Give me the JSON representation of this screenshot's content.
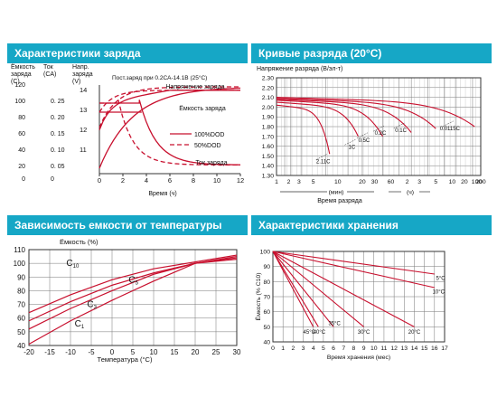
{
  "colors": {
    "header_bg": "#16a7c6",
    "curve": "#c8102e",
    "grid": "#777777",
    "text": "#111111"
  },
  "panels": {
    "charge": {
      "title": "Характеристики заряда",
      "note": "Пост.заряд при 0.2CA-14.1В (25°C)",
      "left_axes": {
        "capacity": {
          "label": [
            "Ёмкость",
            "заряда",
            "(C)"
          ],
          "ticks": [
            "120",
            "100",
            "80",
            "60",
            "40",
            "20",
            "0"
          ]
        },
        "current": {
          "label": [
            "Ток",
            "(CA)"
          ],
          "ticks": [
            "0. 25",
            "0. 20",
            "0. 15",
            "0. 10",
            "0. 05",
            "0"
          ]
        },
        "voltage": {
          "label": [
            "Напр.",
            "заряда",
            "(V)"
          ],
          "ticks": [
            "14",
            "13",
            "12",
            "11"
          ]
        }
      },
      "curve_labels": {
        "voltage": "Напряжение заряда",
        "capacity": "Ёмкость заряда",
        "current": "Ток заряда"
      },
      "legend": [
        "100%DOD",
        "50%DOD"
      ],
      "xlabel": "Время (ч)",
      "xticks": [
        "0",
        "2",
        "4",
        "6",
        "8",
        "10",
        "12"
      ]
    },
    "discharge": {
      "title": "Кривые разряда (20°C)",
      "ylabel": "Напряжение разряда (В/эл-т)",
      "yticks": [
        "2.30",
        "2.20",
        "2.10",
        "2.00",
        "1.90",
        "1.80",
        "1.70",
        "1.60",
        "1.50",
        "1.40",
        "1.30"
      ],
      "xticks": [
        "1",
        "2",
        "3",
        "5",
        "10",
        "20",
        "30",
        "60",
        "2",
        "3",
        "5",
        "10",
        "20",
        "100",
        "200"
      ],
      "unit_min": "(мин)",
      "unit_h": "(ч)",
      "xlabel": "Время разряда",
      "curve_labels": [
        "2.11C",
        "1C",
        "0.5C",
        "0.2C",
        "0.1C",
        "0.0115C"
      ]
    },
    "temperature": {
      "title": "Зависимость емкости от температуры",
      "ylabel": "Ёмкость (%)",
      "xlabel": "Температура (°C)",
      "yticks": [
        "40",
        "50",
        "60",
        "70",
        "80",
        "90",
        "100",
        "110"
      ],
      "xticks": [
        "-20",
        "-15",
        "-10",
        "-5",
        "0",
        "5",
        "10",
        "15",
        "20",
        "25",
        "30"
      ],
      "labels": {
        "c10": "C10",
        "c5": "C5",
        "c3": "C3",
        "c1": "C1"
      }
    },
    "storage": {
      "title": "Характеристики хранения",
      "ylabel": "Ёмкость (% C10)",
      "xlabel": "Время хранения (мес)",
      "yticks": [
        "100",
        "90",
        "80",
        "70",
        "60",
        "50",
        "40"
      ],
      "xticks": [
        "0",
        "1",
        "2",
        "3",
        "4",
        "5",
        "6",
        "7",
        "8",
        "9",
        "10",
        "11",
        "12",
        "13",
        "14",
        "15",
        "16",
        "17"
      ],
      "temp_labels": [
        "45°C",
        "40°C",
        "35°C",
        "30°C",
        "20°C",
        "10°C",
        "5°C"
      ]
    }
  },
  "chart_data": [
    {
      "type": "line",
      "title": "Характеристики заряда",
      "xlabel": "Время (ч)",
      "xlim": [
        0,
        12
      ],
      "series": [
        {
          "name": "Напряжение заряда",
          "x": [
            0,
            0.5,
            1,
            2,
            3,
            4,
            12
          ],
          "y": [
            12.1,
            12.9,
            13.2,
            13.5,
            13.8,
            14.1,
            14.1
          ]
        },
        {
          "name": "Ёмкость заряда",
          "x": [
            0,
            1,
            2,
            3,
            4,
            5,
            8,
            12
          ],
          "y": [
            0,
            20,
            40,
            60,
            78,
            90,
            100,
            100
          ]
        },
        {
          "name": "Ток заряда",
          "x": [
            0,
            3.5,
            4,
            5,
            6,
            8,
            12
          ],
          "y": [
            0.2,
            0.2,
            0.19,
            0.1,
            0.06,
            0.02,
            0.01
          ]
        }
      ]
    },
    {
      "type": "line",
      "title": "Кривые разряда (20°C)",
      "ylabel": "Напряжение разряда (В/эл-т)",
      "ylim": [
        1.3,
        2.3
      ],
      "xlabel": "Время разряда",
      "series": [
        {
          "name": "2.11C",
          "x_min": [
            1,
            10,
            20
          ],
          "y": [
            2.05,
            1.9,
            1.55
          ]
        },
        {
          "name": "1C",
          "x_min": [
            1,
            30,
            60
          ],
          "y": [
            2.06,
            1.9,
            1.75
          ]
        },
        {
          "name": "0.5C",
          "x_min": [
            1,
            60,
            120
          ],
          "y": [
            2.07,
            1.95,
            1.75
          ]
        },
        {
          "name": "0.2C",
          "x_min": [
            1,
            180,
            300
          ],
          "y": [
            2.08,
            1.98,
            1.75
          ]
        },
        {
          "name": "0.1C",
          "x_min": [
            1,
            420,
            600
          ],
          "y": [
            2.09,
            2.0,
            1.8
          ]
        },
        {
          "name": "0.0115C",
          "x_min": [
            1,
            3600,
            5400
          ],
          "y": [
            2.1,
            2.05,
            1.8
          ]
        }
      ]
    },
    {
      "type": "line",
      "title": "Зависимость емкости от температуры",
      "xlabel": "Температура (°C)",
      "ylabel": "Ёмкость (%)",
      "xlim": [
        -20,
        30
      ],
      "ylim": [
        40,
        110
      ],
      "series": [
        {
          "name": "C10",
          "x": [
            -20,
            -10,
            0,
            10,
            20,
            30
          ],
          "y": [
            64,
            77,
            88,
            96,
            101,
            106
          ]
        },
        {
          "name": "C5",
          "x": [
            -20,
            -10,
            0,
            10,
            20,
            30
          ],
          "y": [
            58,
            72,
            84,
            93,
            100,
            104
          ]
        },
        {
          "name": "C3",
          "x": [
            -20,
            -10,
            0,
            10,
            20,
            30
          ],
          "y": [
            52,
            67,
            80,
            92,
            100,
            103
          ]
        },
        {
          "name": "C1",
          "x": [
            -20,
            -10,
            0,
            10,
            20,
            30
          ],
          "y": [
            41,
            58,
            73,
            87,
            100,
            105
          ]
        }
      ]
    },
    {
      "type": "line",
      "title": "Характеристики хранения",
      "xlabel": "Время хранения (мес)",
      "ylabel": "Ёмкость (% C10)",
      "xlim": [
        0,
        17
      ],
      "ylim": [
        40,
        100
      ],
      "series": [
        {
          "name": "45°C",
          "x": [
            0,
            4
          ],
          "y": [
            100,
            50
          ]
        },
        {
          "name": "40°C",
          "x": [
            0,
            4.5
          ],
          "y": [
            100,
            50
          ]
        },
        {
          "name": "35°C",
          "x": [
            0,
            6
          ],
          "y": [
            100,
            50
          ]
        },
        {
          "name": "30°C",
          "x": [
            0,
            9
          ],
          "y": [
            100,
            50
          ]
        },
        {
          "name": "20°C",
          "x": [
            0,
            14
          ],
          "y": [
            100,
            50
          ]
        },
        {
          "name": "10°C",
          "x": [
            0,
            16
          ],
          "y": [
            100,
            76
          ]
        },
        {
          "name": "5°C",
          "x": [
            0,
            16
          ],
          "y": [
            100,
            85
          ]
        }
      ]
    }
  ]
}
